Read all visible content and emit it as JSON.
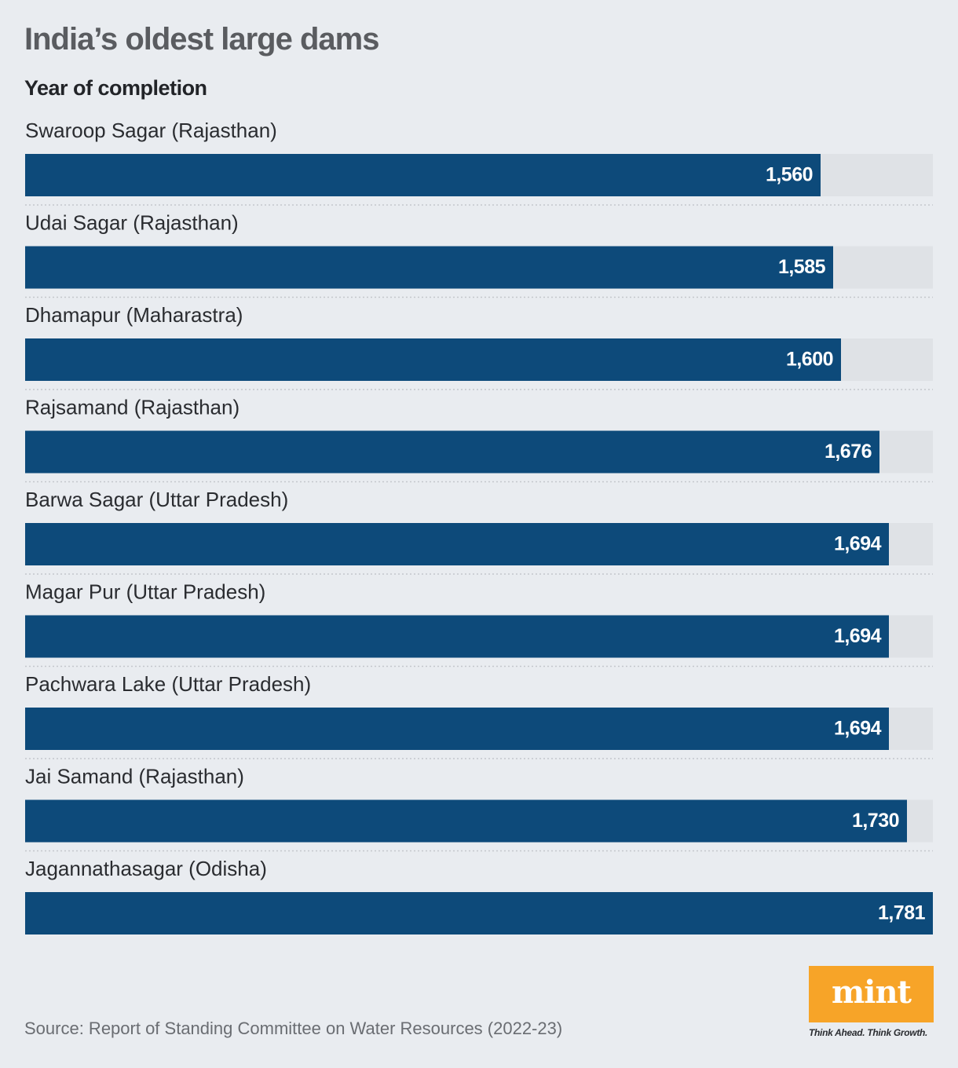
{
  "title": "India’s oldest large dams",
  "subtitle": "Year of completion",
  "source": "Source: Report of Standing Committee on Water Resources (2022-23)",
  "logo": {
    "name": "mint",
    "tagline": "Think Ahead. Think Growth."
  },
  "colors": {
    "bar": "#0d4a7a",
    "track": "#dfe2e6",
    "background": "#e9ecf0",
    "divider": "#c4c7cc",
    "logo": "#f7a428"
  },
  "chart_data": {
    "type": "bar",
    "orientation": "horizontal",
    "title": "India’s oldest large dams",
    "subtitle": "Year of completion",
    "categories": [
      "Swaroop Sagar (Rajasthan)",
      "Udai Sagar (Rajasthan)",
      "Dhamapur (Maharastra)",
      "Rajsamand (Rajasthan)",
      "Barwa Sagar (Uttar Pradesh)",
      "Magar Pur (Uttar Pradesh)",
      "Pachwara Lake (Uttar Pradesh)",
      "Jai Samand (Rajasthan)",
      "Jagannathasagar (Odisha)"
    ],
    "values": [
      1560,
      1585,
      1600,
      1676,
      1694,
      1694,
      1694,
      1730,
      1781
    ],
    "value_labels": [
      "1,560",
      "1,585",
      "1,600",
      "1,676",
      "1,694",
      "1,694",
      "1,694",
      "1,730",
      "1,781"
    ],
    "xlim": [
      0,
      1781
    ],
    "grid": false
  }
}
